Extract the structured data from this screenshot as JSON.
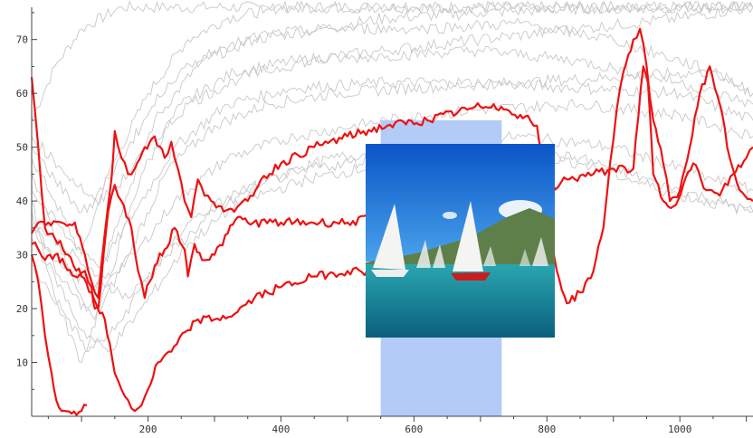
{
  "chart_data": {
    "type": "line",
    "title": "",
    "xlabel": "",
    "ylabel": "",
    "xlim": [
      25,
      1110
    ],
    "ylim": [
      0,
      76
    ],
    "x_ticks": [
      200,
      400,
      600,
      800,
      1000
    ],
    "y_ticks": [
      10,
      20,
      30,
      40,
      50,
      60,
      70
    ],
    "grid": false,
    "legend": "none",
    "colors": {
      "highlight": "#ee1111",
      "background_series": "#c8c8c8",
      "selection_band": "#b3cbf7"
    },
    "selection_band": {
      "x_start": 550,
      "x_end": 732,
      "y_top": 55
    },
    "image_overlay": {
      "description": "photo",
      "subject": "sailboats-on-lake"
    },
    "highlighted_series": [
      {
        "points": [
          [
            25,
            63
          ],
          [
            35,
            50
          ],
          [
            45,
            35
          ],
          [
            60,
            33
          ],
          [
            80,
            30
          ],
          [
            100,
            26
          ],
          [
            115,
            23
          ],
          [
            125,
            20
          ],
          [
            140,
            38
          ],
          [
            150,
            43
          ],
          [
            160,
            40
          ],
          [
            175,
            35
          ],
          [
            185,
            27
          ],
          [
            195,
            22
          ],
          [
            210,
            28
          ],
          [
            225,
            31
          ],
          [
            240,
            35
          ],
          [
            255,
            31
          ],
          [
            260,
            26
          ],
          [
            270,
            32
          ],
          [
            285,
            29
          ],
          [
            300,
            30
          ],
          [
            320,
            34
          ],
          [
            335,
            37
          ],
          [
            350,
            36
          ],
          [
            400,
            36
          ],
          [
            500,
            36
          ],
          [
            550,
            37
          ],
          [
            600,
            38
          ],
          [
            650,
            40
          ],
          [
            700,
            41
          ],
          [
            720,
            43
          ],
          [
            740,
            42
          ],
          [
            760,
            41
          ],
          [
            780,
            40
          ],
          [
            800,
            42
          ],
          [
            830,
            44
          ],
          [
            870,
            45
          ],
          [
            900,
            46
          ],
          [
            930,
            46
          ],
          [
            945,
            65
          ],
          [
            952,
            62
          ],
          [
            960,
            45
          ],
          [
            975,
            40
          ],
          [
            990,
            39
          ],
          [
            1005,
            43
          ],
          [
            1020,
            47
          ],
          [
            1040,
            42
          ],
          [
            1060,
            41
          ],
          [
            1080,
            45
          ],
          [
            1100,
            48
          ],
          [
            1110,
            50
          ]
        ]
      },
      {
        "points": [
          [
            25,
            34
          ],
          [
            35,
            36
          ],
          [
            50,
            36
          ],
          [
            70,
            36
          ],
          [
            90,
            36
          ],
          [
            105,
            30
          ],
          [
            115,
            25
          ],
          [
            125,
            22
          ],
          [
            135,
            34
          ],
          [
            145,
            44
          ],
          [
            150,
            53
          ],
          [
            160,
            48
          ],
          [
            170,
            45
          ],
          [
            180,
            46
          ],
          [
            195,
            50
          ],
          [
            210,
            52
          ],
          [
            225,
            48
          ],
          [
            235,
            51
          ],
          [
            245,
            46
          ],
          [
            255,
            40
          ],
          [
            265,
            37
          ],
          [
            275,
            44
          ],
          [
            285,
            41
          ],
          [
            295,
            40
          ],
          [
            310,
            39
          ],
          [
            330,
            38
          ],
          [
            350,
            40
          ],
          [
            370,
            44
          ],
          [
            400,
            47
          ],
          [
            450,
            50
          ],
          [
            500,
            52
          ],
          [
            560,
            54
          ],
          [
            620,
            55
          ],
          [
            680,
            57
          ],
          [
            720,
            58
          ],
          [
            735,
            57
          ],
          [
            760,
            56
          ],
          [
            775,
            55
          ],
          [
            785,
            54
          ],
          [
            800,
            38
          ],
          [
            815,
            27
          ],
          [
            830,
            21
          ],
          [
            850,
            23
          ],
          [
            870,
            27
          ],
          [
            885,
            35
          ],
          [
            895,
            47
          ],
          [
            905,
            57
          ],
          [
            915,
            64
          ],
          [
            930,
            70
          ],
          [
            940,
            72
          ],
          [
            950,
            65
          ],
          [
            960,
            55
          ],
          [
            975,
            47
          ],
          [
            985,
            40
          ],
          [
            1000,
            42
          ],
          [
            1015,
            50
          ],
          [
            1030,
            60
          ],
          [
            1045,
            65
          ],
          [
            1060,
            58
          ],
          [
            1075,
            48
          ],
          [
            1090,
            42
          ],
          [
            1110,
            40
          ]
        ]
      },
      {
        "points": [
          [
            25,
            32
          ],
          [
            35,
            31
          ],
          [
            45,
            29
          ],
          [
            60,
            30
          ],
          [
            75,
            28
          ],
          [
            90,
            26
          ],
          [
            105,
            27
          ],
          [
            115,
            24
          ],
          [
            120,
            20
          ],
          [
            135,
            18
          ],
          [
            150,
            8
          ],
          [
            160,
            5
          ],
          [
            170,
            3
          ],
          [
            180,
            1
          ],
          [
            190,
            2
          ],
          [
            200,
            5
          ],
          [
            215,
            10
          ],
          [
            235,
            12
          ],
          [
            260,
            16
          ],
          [
            275,
            18
          ],
          [
            300,
            18
          ],
          [
            330,
            19
          ],
          [
            360,
            22
          ],
          [
            400,
            24
          ],
          [
            450,
            26
          ],
          [
            500,
            27
          ],
          [
            530,
            27
          ],
          [
            550,
            28
          ]
        ]
      },
      {
        "points": [
          [
            25,
            30
          ],
          [
            35,
            25
          ],
          [
            45,
            15
          ],
          [
            55,
            8
          ],
          [
            62,
            3
          ],
          [
            70,
            1
          ],
          [
            85,
            0.5
          ],
          [
            100,
            1
          ],
          [
            108,
            2
          ]
        ]
      }
    ],
    "background_series": [
      {
        "points": [
          [
            25,
            55
          ],
          [
            60,
            65
          ],
          [
            100,
            72
          ],
          [
            160,
            76
          ],
          [
            300,
            76
          ],
          [
            500,
            76
          ],
          [
            800,
            76
          ],
          [
            1110,
            76
          ]
        ]
      },
      {
        "points": [
          [
            25,
            48
          ],
          [
            60,
            40
          ],
          [
            100,
            30
          ],
          [
            140,
            45
          ],
          [
            200,
            60
          ],
          [
            260,
            70
          ],
          [
            320,
            74
          ],
          [
            400,
            76
          ],
          [
            600,
            76
          ],
          [
            900,
            76
          ],
          [
            1110,
            76
          ]
        ]
      },
      {
        "points": [
          [
            25,
            45
          ],
          [
            70,
            30
          ],
          [
            110,
            20
          ],
          [
            150,
            35
          ],
          [
            210,
            55
          ],
          [
            280,
            66
          ],
          [
            360,
            70
          ],
          [
            460,
            72
          ],
          [
            560,
            74
          ],
          [
            700,
            75
          ],
          [
            900,
            76
          ],
          [
            1110,
            76
          ]
        ]
      },
      {
        "points": [
          [
            25,
            40
          ],
          [
            60,
            22
          ],
          [
            100,
            10
          ],
          [
            140,
            25
          ],
          [
            190,
            45
          ],
          [
            250,
            58
          ],
          [
            330,
            64
          ],
          [
            420,
            66
          ],
          [
            560,
            68
          ],
          [
            700,
            70
          ],
          [
            850,
            72
          ],
          [
            1000,
            74
          ],
          [
            1110,
            76
          ]
        ]
      },
      {
        "points": [
          [
            25,
            38
          ],
          [
            70,
            25
          ],
          [
            120,
            18
          ],
          [
            170,
            30
          ],
          [
            230,
            46
          ],
          [
            300,
            54
          ],
          [
            380,
            58
          ],
          [
            480,
            60
          ],
          [
            600,
            61
          ],
          [
            760,
            62
          ],
          [
            900,
            63
          ],
          [
            1050,
            64
          ],
          [
            1110,
            60
          ]
        ]
      },
      {
        "points": [
          [
            25,
            42
          ],
          [
            80,
            33
          ],
          [
            130,
            28
          ],
          [
            180,
            38
          ],
          [
            240,
            50
          ],
          [
            320,
            58
          ],
          [
            420,
            61
          ],
          [
            560,
            62
          ],
          [
            700,
            62
          ],
          [
            850,
            61
          ],
          [
            1000,
            60
          ],
          [
            1110,
            55
          ]
        ]
      },
      {
        "points": [
          [
            25,
            35
          ],
          [
            70,
            28
          ],
          [
            120,
            24
          ],
          [
            180,
            30
          ],
          [
            240,
            40
          ],
          [
            320,
            48
          ],
          [
            420,
            52
          ],
          [
            560,
            55
          ],
          [
            700,
            57
          ],
          [
            850,
            58
          ],
          [
            1000,
            56
          ],
          [
            1110,
            52
          ]
        ]
      },
      {
        "points": [
          [
            25,
            36
          ],
          [
            70,
            32
          ],
          [
            120,
            26
          ],
          [
            170,
            22
          ],
          [
            230,
            30
          ],
          [
            300,
            38
          ],
          [
            380,
            44
          ],
          [
            480,
            48
          ],
          [
            600,
            50
          ],
          [
            760,
            52
          ],
          [
            900,
            50
          ],
          [
            1050,
            44
          ],
          [
            1110,
            42
          ]
        ]
      },
      {
        "points": [
          [
            25,
            33
          ],
          [
            60,
            26
          ],
          [
            100,
            16
          ],
          [
            140,
            12
          ],
          [
            190,
            20
          ],
          [
            260,
            32
          ],
          [
            340,
            40
          ],
          [
            440,
            44
          ],
          [
            560,
            47
          ],
          [
            700,
            49
          ],
          [
            850,
            48
          ],
          [
            1000,
            42
          ],
          [
            1110,
            38
          ]
        ]
      },
      {
        "points": [
          [
            25,
            50
          ],
          [
            60,
            44
          ],
          [
            100,
            38
          ],
          [
            150,
            42
          ],
          [
            200,
            50
          ],
          [
            260,
            58
          ],
          [
            340,
            63
          ],
          [
            440,
            66
          ],
          [
            560,
            67
          ],
          [
            700,
            68
          ],
          [
            850,
            66
          ],
          [
            1000,
            62
          ],
          [
            1110,
            58
          ]
        ]
      },
      {
        "points": [
          [
            25,
            28
          ],
          [
            70,
            20
          ],
          [
            110,
            12
          ],
          [
            150,
            16
          ],
          [
            200,
            26
          ],
          [
            260,
            36
          ],
          [
            340,
            42
          ],
          [
            440,
            46
          ],
          [
            560,
            48
          ],
          [
            700,
            50
          ],
          [
            850,
            47
          ],
          [
            1000,
            41
          ],
          [
            1110,
            38
          ]
        ]
      },
      {
        "points": [
          [
            25,
            52
          ],
          [
            70,
            46
          ],
          [
            120,
            40
          ],
          [
            170,
            50
          ],
          [
            230,
            62
          ],
          [
            300,
            68
          ],
          [
            380,
            71
          ],
          [
            480,
            72
          ],
          [
            600,
            72
          ],
          [
            760,
            73
          ],
          [
            900,
            70
          ],
          [
            1050,
            64
          ],
          [
            1110,
            60
          ]
        ]
      }
    ]
  }
}
